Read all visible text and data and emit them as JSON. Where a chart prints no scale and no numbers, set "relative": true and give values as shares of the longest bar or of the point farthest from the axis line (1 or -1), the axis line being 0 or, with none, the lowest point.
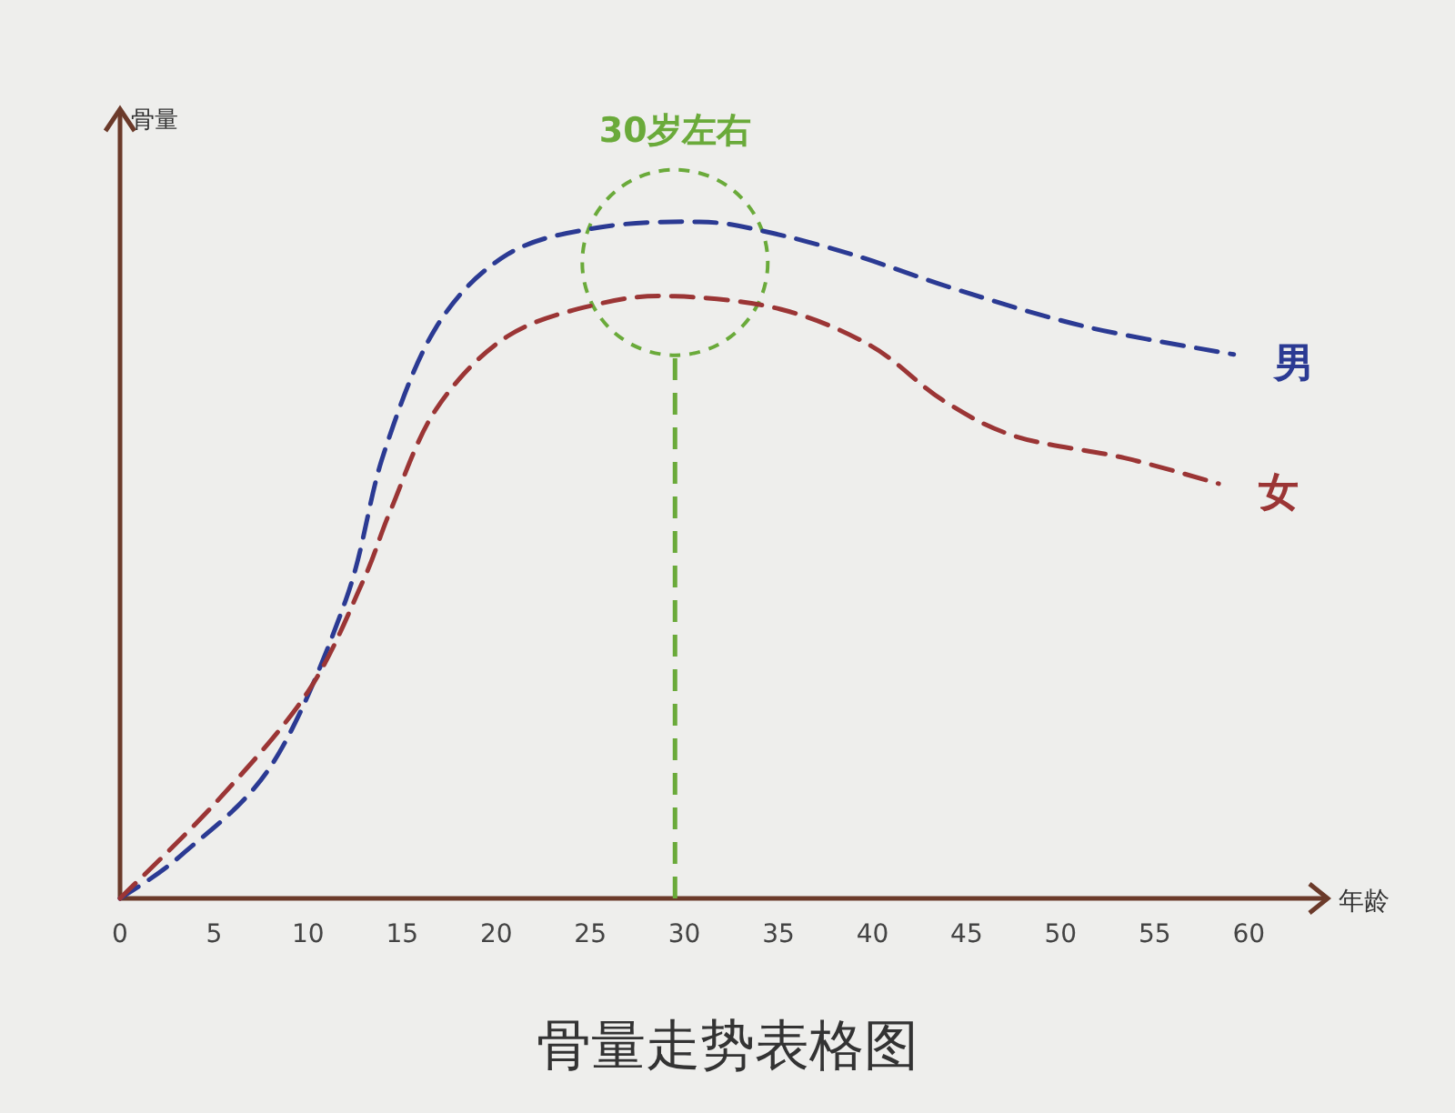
{
  "chart_data": {
    "type": "line",
    "title": "骨量走势表格图",
    "xlabel": "年龄",
    "ylabel": "骨量",
    "relative": true,
    "line_style": "dashed",
    "marker": "none",
    "xlim": [
      0,
      64
    ],
    "xticks": [
      0,
      5,
      10,
      15,
      20,
      25,
      30,
      35,
      40,
      45,
      50,
      55,
      60
    ],
    "series": [
      {
        "name": "男",
        "color": "#2b3a93",
        "x": [
          0,
          3.3,
          8.1,
          12.0,
          14.0,
          16.8,
          20.6,
          25.5,
          30.8,
          34.1,
          38.9,
          44.7,
          51.5,
          59.2
        ],
        "values": [
          0,
          0.065,
          0.199,
          0.441,
          0.656,
          0.844,
          0.952,
          0.992,
          1,
          0.987,
          0.952,
          0.898,
          0.844,
          0.804
        ]
      },
      {
        "name": "女",
        "color": "#9b3535",
        "x": [
          0,
          5.2,
          10.0,
          12.9,
          14.4,
          16.8,
          20.6,
          25.5,
          29.5,
          35.1,
          39.9,
          43.7,
          47.6,
          53.4,
          58.4
        ],
        "values": [
          0,
          0.145,
          0.306,
          0.468,
          0.575,
          0.723,
          0.831,
          0.879,
          0.89,
          0.871,
          0.817,
          0.737,
          0.683,
          0.651,
          0.613
        ]
      }
    ],
    "ref_lines": [
      {
        "axis": "x",
        "value": 29.5,
        "label": "30岁左右",
        "color": "#6aaa3a",
        "line_style": "dashed"
      }
    ]
  }
}
